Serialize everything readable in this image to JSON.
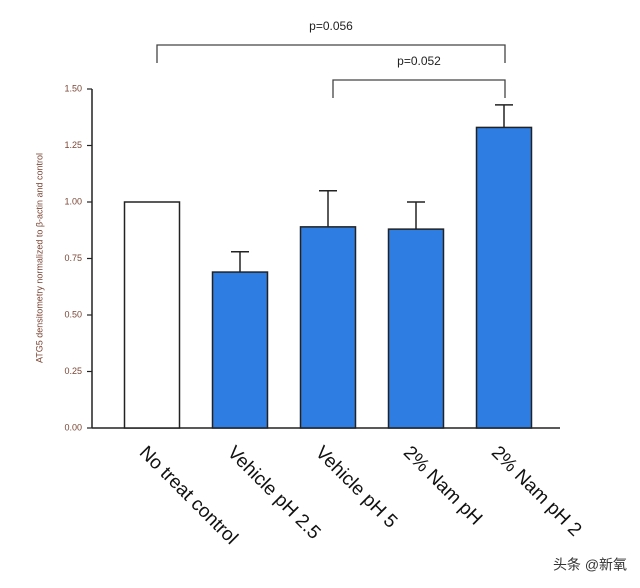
{
  "chart_data": {
    "type": "bar",
    "y_label": "ATG5 densitometry normalized to β-actin and control",
    "categories": [
      "No treat control",
      "Vehicle pH 2.5",
      "Vehicle pH 5",
      "2% Nam pH",
      "2% Nam pH 2"
    ],
    "values": [
      1.0,
      0.69,
      0.89,
      0.88,
      1.33
    ],
    "errors": [
      null,
      0.09,
      0.16,
      0.12,
      0.1
    ],
    "colors": [
      "#ffffff",
      "#2e7de2",
      "#2e7de2",
      "#2e7de2",
      "#2e7de2"
    ],
    "ylim": [
      0,
      1.5
    ],
    "yticks": [
      {
        "value": 0,
        "label": "0.00"
      },
      {
        "value": 0.25,
        "label": "0.25"
      },
      {
        "value": 0.5,
        "label": "0.50"
      },
      {
        "value": 0.75,
        "label": "0.75"
      },
      {
        "value": 1,
        "label": "1.00"
      },
      {
        "value": 1.25,
        "label": "1.25"
      },
      {
        "value": 1.5,
        "label": "1.50"
      }
    ],
    "annotations": [
      "p=0.056",
      "p=0.052"
    ],
    "watermark": "头条 @新氧"
  }
}
